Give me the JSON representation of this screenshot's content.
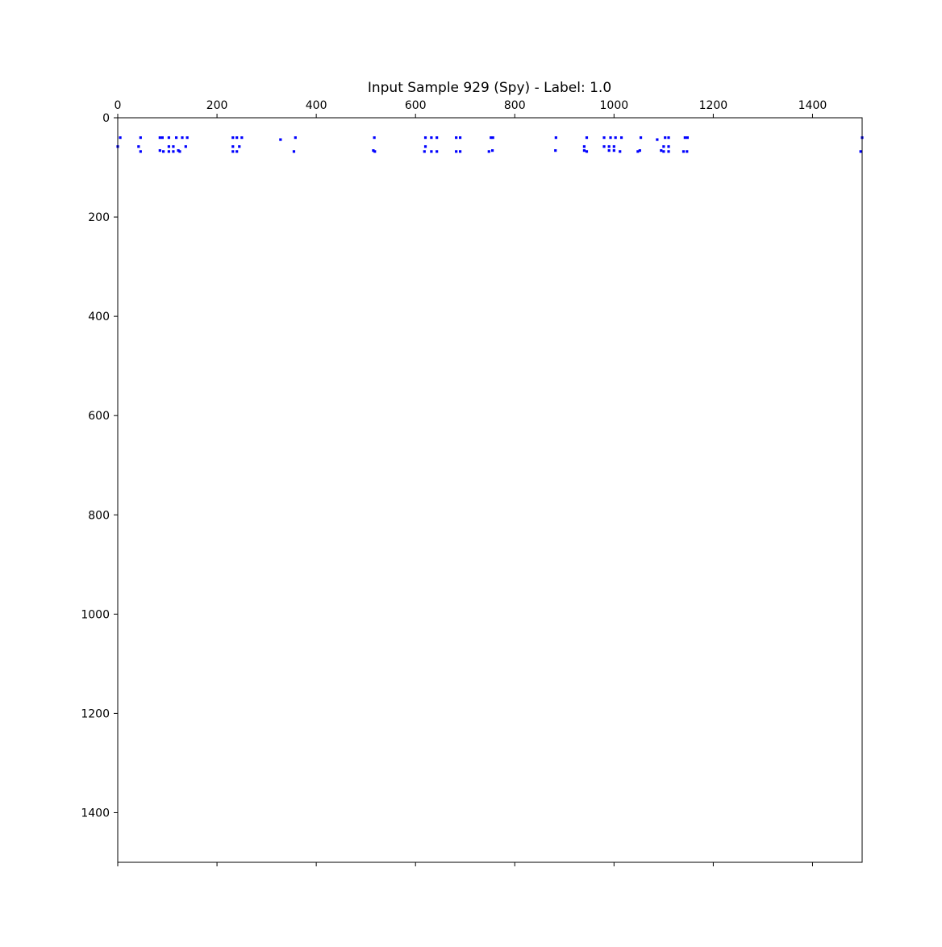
{
  "chart_data": {
    "type": "scatter",
    "title": "Input Sample 929 (Spy) - Label: 1.0",
    "xlabel": "",
    "ylabel": "",
    "xlim": [
      0,
      1500
    ],
    "ylim": [
      1500,
      0
    ],
    "x_axis_position": "top",
    "y_axis_inverted": true,
    "grid": false,
    "marker_color": "#0000ff",
    "x_ticks": [
      0,
      200,
      400,
      600,
      800,
      1000,
      1200,
      1400
    ],
    "x_tick_labels": [
      "0",
      "200",
      "400",
      "600",
      "800",
      "1000",
      "1200",
      "1400"
    ],
    "y_ticks": [
      0,
      200,
      400,
      600,
      800,
      1000,
      1200,
      1400
    ],
    "y_tick_labels": [
      "0",
      "200",
      "400",
      "600",
      "800",
      "1000",
      "1200",
      "1400"
    ],
    "points": [
      [
        5,
        40
      ],
      [
        0,
        58
      ],
      [
        46,
        40
      ],
      [
        42,
        58
      ],
      [
        46,
        68
      ],
      [
        85,
        40
      ],
      [
        90,
        40
      ],
      [
        85,
        66
      ],
      [
        92,
        68
      ],
      [
        103,
        40
      ],
      [
        103,
        58
      ],
      [
        103,
        68
      ],
      [
        112,
        58
      ],
      [
        112,
        68
      ],
      [
        118,
        40
      ],
      [
        122,
        66
      ],
      [
        125,
        68
      ],
      [
        130,
        40
      ],
      [
        137,
        58
      ],
      [
        140,
        40
      ],
      [
        232,
        40
      ],
      [
        240,
        40
      ],
      [
        250,
        40
      ],
      [
        232,
        58
      ],
      [
        232,
        68
      ],
      [
        240,
        68
      ],
      [
        245,
        58
      ],
      [
        328,
        44
      ],
      [
        358,
        40
      ],
      [
        355,
        68
      ],
      [
        517,
        40
      ],
      [
        515,
        66
      ],
      [
        518,
        68
      ],
      [
        620,
        40
      ],
      [
        620,
        58
      ],
      [
        618,
        68
      ],
      [
        632,
        40
      ],
      [
        632,
        68
      ],
      [
        643,
        40
      ],
      [
        643,
        68
      ],
      [
        682,
        40
      ],
      [
        690,
        40
      ],
      [
        682,
        68
      ],
      [
        690,
        68
      ],
      [
        752,
        40
      ],
      [
        756,
        40
      ],
      [
        748,
        68
      ],
      [
        755,
        66
      ],
      [
        883,
        40
      ],
      [
        882,
        66
      ],
      [
        945,
        40
      ],
      [
        940,
        58
      ],
      [
        940,
        66
      ],
      [
        945,
        68
      ],
      [
        980,
        40
      ],
      [
        980,
        58
      ],
      [
        990,
        58
      ],
      [
        990,
        66
      ],
      [
        993,
        40
      ],
      [
        1000,
        58
      ],
      [
        1000,
        66
      ],
      [
        1003,
        40
      ],
      [
        1012,
        68
      ],
      [
        1015,
        40
      ],
      [
        1048,
        68
      ],
      [
        1052,
        66
      ],
      [
        1054,
        40
      ],
      [
        1087,
        44
      ],
      [
        1095,
        66
      ],
      [
        1100,
        58
      ],
      [
        1100,
        68
      ],
      [
        1103,
        40
      ],
      [
        1110,
        40
      ],
      [
        1110,
        58
      ],
      [
        1110,
        68
      ],
      [
        1140,
        68
      ],
      [
        1147,
        68
      ],
      [
        1143,
        40
      ],
      [
        1148,
        40
      ],
      [
        1500,
        40
      ],
      [
        1497,
        68
      ]
    ]
  }
}
